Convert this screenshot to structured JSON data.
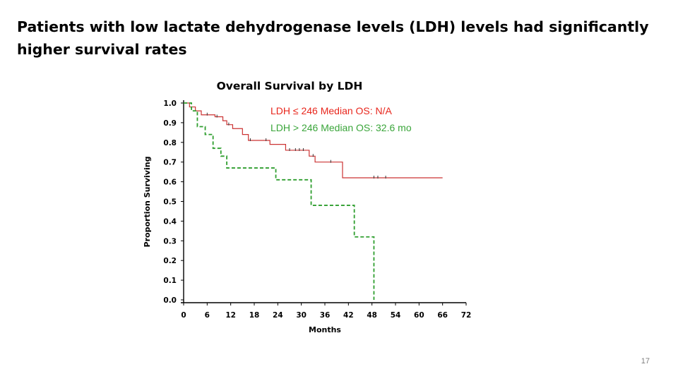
{
  "slide": {
    "title_line1": "Patients with low lactate dehydrogenase levels (LDH) levels had significantly",
    "title_line2": "higher survival rates",
    "page_number": "17"
  },
  "colors": {
    "ldh_low": "#cc3333",
    "ldh_high": "#2e9e2e",
    "ldh_low_legend": "#e8261c",
    "ldh_high_legend": "#3aa53a",
    "axis": "#000000"
  },
  "chart_data": {
    "type": "line",
    "title": "Overall Survival by LDH",
    "xlabel": "Months",
    "ylabel": "Proportion Surviving",
    "xlim": [
      0,
      72
    ],
    "ylim": [
      0,
      1
    ],
    "xticks": [
      0,
      6,
      12,
      18,
      24,
      30,
      36,
      42,
      48,
      54,
      60,
      66,
      72
    ],
    "yticks": [
      0.0,
      0.1,
      0.2,
      0.3,
      0.4,
      0.5,
      0.6,
      0.7,
      0.8,
      0.9,
      1.0
    ],
    "ytick_labels": [
      "0.0",
      "0.1",
      "0.2",
      "0.3",
      "0.4",
      "0.5",
      "0.6",
      "0.7",
      "0.8",
      "0.9",
      "1.0"
    ],
    "grid": false,
    "legend_position": "top-right",
    "series": [
      {
        "name": "LDH ≤ 246 Median OS: N/A",
        "line_style": "solid",
        "steps": [
          [
            0,
            1.0
          ],
          [
            1.5,
            0.98
          ],
          [
            3,
            0.96
          ],
          [
            4.5,
            0.94
          ],
          [
            8,
            0.93
          ],
          [
            10,
            0.91
          ],
          [
            11,
            0.89
          ],
          [
            12.5,
            0.87
          ],
          [
            15,
            0.84
          ],
          [
            16.5,
            0.81
          ],
          [
            22,
            0.79
          ],
          [
            26,
            0.76
          ],
          [
            32,
            0.73
          ],
          [
            33.5,
            0.7
          ],
          [
            40.5,
            0.62
          ],
          [
            66,
            0.62
          ]
        ],
        "censored": [
          6,
          8.5,
          11.5,
          17,
          21,
          27,
          28.5,
          29.5,
          30.5,
          33,
          37.5,
          48.5,
          49.5,
          51.5
        ]
      },
      {
        "name": "LDH > 246 Median OS: 32.6 mo",
        "line_style": "dashed",
        "steps": [
          [
            0,
            1.0
          ],
          [
            2,
            0.96
          ],
          [
            3.5,
            0.88
          ],
          [
            5.5,
            0.84
          ],
          [
            7.5,
            0.77
          ],
          [
            9.5,
            0.73
          ],
          [
            11,
            0.67
          ],
          [
            23.5,
            0.61
          ],
          [
            32.5,
            0.48
          ],
          [
            43.5,
            0.32
          ],
          [
            48.5,
            0.0
          ]
        ],
        "censored": []
      }
    ]
  }
}
